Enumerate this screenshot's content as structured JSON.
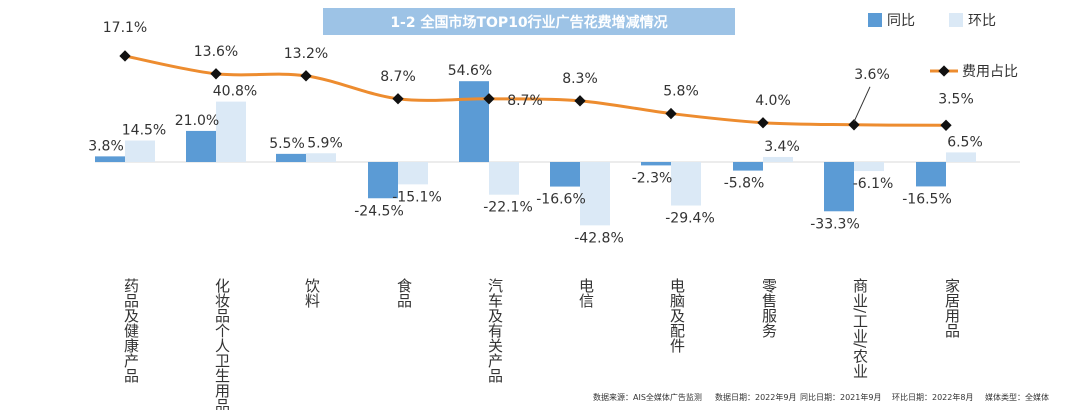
{
  "colors": {
    "yoy": "#5b9bd5",
    "mom": "#dbe9f6",
    "share_line": "#ed8c2f",
    "marker": "#111111",
    "title_bg": "#9dc3e6"
  },
  "chart_data": {
    "type": "bar",
    "title": "1-2 全国市场TOP10行业广告花费增减情况",
    "categories": [
      "药品及健康产品",
      "化妆品个人卫生用品",
      "饮料",
      "食品",
      "汽车及有关产品",
      "电信",
      "电脑及配件",
      "零售服务",
      "商业/工业/农业",
      "家居用品"
    ],
    "series": [
      {
        "name": "同比",
        "type": "bar",
        "values": [
          3.8,
          21.0,
          5.5,
          -24.5,
          54.6,
          -16.6,
          -2.3,
          -5.8,
          -33.3,
          -16.5
        ],
        "labels": [
          "3.8%",
          "21.0%",
          "5.5%",
          "-24.5%",
          "54.6%",
          "-16.6%",
          "-2.3%",
          "-5.8%",
          "-33.3%",
          "-16.5%"
        ]
      },
      {
        "name": "环比",
        "type": "bar",
        "values": [
          14.5,
          40.8,
          5.9,
          -15.1,
          -22.1,
          -42.8,
          -29.4,
          3.4,
          -6.1,
          6.5
        ],
        "labels": [
          "14.5%",
          "40.8%",
          "5.9%",
          "-15.1%",
          "-22.1%",
          "-42.8%",
          "-29.4%",
          "3.4%",
          "-6.1%",
          "6.5%"
        ]
      },
      {
        "name": "费用占比",
        "type": "line",
        "values": [
          17.1,
          13.6,
          13.2,
          8.7,
          8.7,
          8.3,
          5.8,
          4.0,
          3.6,
          3.5
        ],
        "labels": [
          "17.1%",
          "13.6%",
          "13.2%",
          "8.7%",
          "8.7%",
          "8.3%",
          "5.8%",
          "4.0%",
          "3.6%",
          "3.5%"
        ]
      }
    ],
    "legend_position": "top-right",
    "grid": false
  },
  "footer": {
    "source": "数据来源：AIS全媒体广告监测",
    "data_date": "数据日期：2022年9月",
    "yoy_date": "同比日期：2021年9月",
    "mom_date": "环比日期：2022年8月",
    "media_type": "媒体类型：全媒体"
  }
}
